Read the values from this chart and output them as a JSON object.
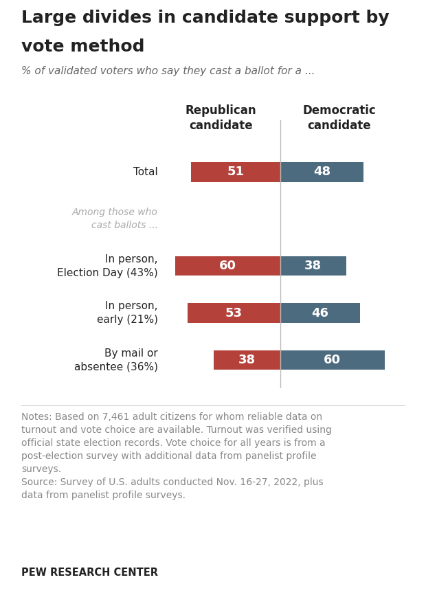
{
  "title_line1": "Large divides in candidate support by",
  "title_line2": "vote method",
  "subtitle": "% of validated voters who say they cast a ballot for a ...",
  "col_header_rep": "Republican\ncandidate",
  "col_header_dem": "Democratic\ncandidate",
  "categories": [
    "Total",
    "In person,\nElection Day (43%)",
    "In person,\nearly (21%)",
    "By mail or\nabsentee (36%)"
  ],
  "republican_values": [
    51,
    60,
    53,
    38
  ],
  "democratic_values": [
    48,
    38,
    46,
    60
  ],
  "republican_color": "#b5413b",
  "democratic_color": "#4d6b7e",
  "bar_height": 0.42,
  "notes_line1": "Notes: Based on 7,461 adult citizens for whom reliable data on",
  "notes_line2": "turnout and vote choice are available. Turnout was verified using",
  "notes_line3": "official state election records. Vote choice for all years is from a",
  "notes_line4": "post-election survey with additional data from panelist profile",
  "notes_line5": "surveys.",
  "source_line1": "Source: Survey of U.S. adults conducted Nov. 16-27, 2022, plus",
  "source_line2": "data from panelist profile surveys.",
  "footer_text": "PEW RESEARCH CENTER",
  "subgroup_label": "Among those who\ncast ballots ...",
  "background_color": "#ffffff",
  "text_color": "#222222",
  "subgroup_color": "#aaaaaa",
  "notes_color": "#888888",
  "value_label_color": "#ffffff",
  "divider_color": "#bbbbbb",
  "value_label_fontsize": 13,
  "title_fontsize": 18,
  "subtitle_fontsize": 11,
  "category_fontsize": 11,
  "header_fontsize": 12,
  "notes_fontsize": 10,
  "footer_fontsize": 10.5
}
